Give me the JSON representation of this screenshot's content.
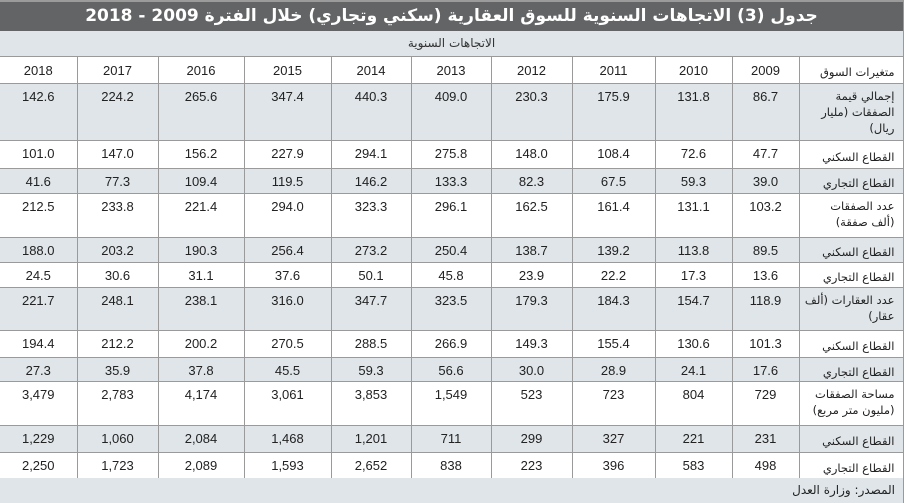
{
  "title": "جدول (3) الاتجاهات السنوية للسوق العقارية (سكني وتجاري) خلال الفترة 2009 - 2018",
  "subtitle": "الاتجاهات السنوية",
  "table": {
    "header_label": "متغيرات السوق",
    "years": [
      "2009",
      "2010",
      "2011",
      "2012",
      "2013",
      "2014",
      "2015",
      "2016",
      "2017",
      "2018"
    ],
    "rows": [
      {
        "label": "إجمالي قيمة الصفقات (مليار ريال)",
        "values": [
          "86.7",
          "131.8",
          "175.9",
          "230.3",
          "409.0",
          "440.3",
          "347.4",
          "265.6",
          "224.2",
          "142.6"
        ]
      },
      {
        "label": "القطاع السكني",
        "values": [
          "47.7",
          "72.6",
          "108.4",
          "148.0",
          "275.8",
          "294.1",
          "227.9",
          "156.2",
          "147.0",
          "101.0"
        ]
      },
      {
        "label": "القطاع التجاري",
        "values": [
          "39.0",
          "59.3",
          "67.5",
          "82.3",
          "133.3",
          "146.2",
          "119.5",
          "109.4",
          "77.3",
          "41.6"
        ]
      },
      {
        "label": "عدد الصفقات (ألف صفقة)",
        "values": [
          "103.2",
          "131.1",
          "161.4",
          "162.5",
          "296.1",
          "323.3",
          "294.0",
          "221.4",
          "233.8",
          "212.5"
        ]
      },
      {
        "label": "القطاع السكني",
        "values": [
          "89.5",
          "113.8",
          "139.2",
          "138.7",
          "250.4",
          "273.2",
          "256.4",
          "190.3",
          "203.2",
          "188.0"
        ]
      },
      {
        "label": "القطاع التجاري",
        "values": [
          "13.6",
          "17.3",
          "22.2",
          "23.9",
          "45.8",
          "50.1",
          "37.6",
          "31.1",
          "30.6",
          "24.5"
        ]
      },
      {
        "label": "عدد العقارات (ألف عقار)",
        "values": [
          "118.9",
          "154.7",
          "184.3",
          "179.3",
          "323.5",
          "347.7",
          "316.0",
          "238.1",
          "248.1",
          "221.7"
        ]
      },
      {
        "label": "القطاع السكني",
        "values": [
          "101.3",
          "130.6",
          "155.4",
          "149.3",
          "266.9",
          "288.5",
          "270.5",
          "200.2",
          "212.2",
          "194.4"
        ]
      },
      {
        "label": "القطاع التجاري",
        "values": [
          "17.6",
          "24.1",
          "28.9",
          "30.0",
          "56.6",
          "59.3",
          "45.5",
          "37.8",
          "35.9",
          "27.3"
        ]
      },
      {
        "label": "مساحة الصفقات (مليون متر مربع)",
        "values": [
          "729",
          "804",
          "723",
          "523",
          "1,549",
          "3,853",
          "3,061",
          "4,174",
          "2,783",
          "3,479"
        ]
      },
      {
        "label": "القطاع السكني",
        "values": [
          "231",
          "221",
          "327",
          "299",
          "711",
          "1,201",
          "1,468",
          "2,084",
          "1,060",
          "1,229"
        ]
      },
      {
        "label": "القطاع التجاري",
        "values": [
          "498",
          "583",
          "396",
          "223",
          "838",
          "2,652",
          "1,593",
          "2,089",
          "1,723",
          "2,250"
        ]
      }
    ]
  },
  "source": "المصدر: وزارة العدل",
  "colors": {
    "title_bg": "#636466",
    "shade_bg": "#dfe5e8",
    "border": "#9a9a9a"
  }
}
